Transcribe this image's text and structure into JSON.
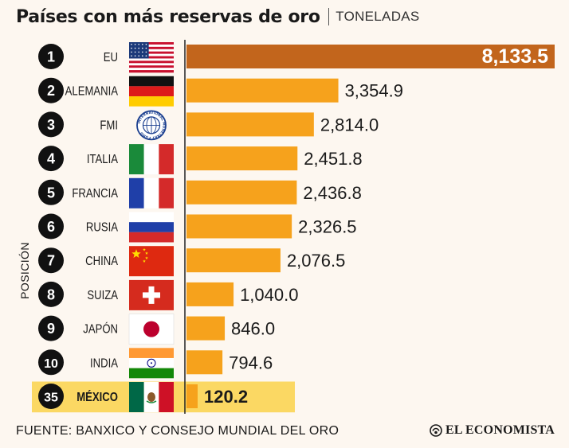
{
  "header": {
    "title": "Países con más reservas de oro",
    "unit": "TONELADAS"
  },
  "chart_data": {
    "type": "bar",
    "orientation": "horizontal",
    "title": "Países con más reservas de oro",
    "unit": "TONELADAS",
    "ylabel": "POSICIÓN",
    "xlim": [
      0,
      8133.5
    ],
    "grid": false,
    "rows": [
      {
        "rank": "1",
        "country": "EU",
        "value": 8133.5,
        "label": "8,133.5",
        "flag": "usa-flag"
      },
      {
        "rank": "2",
        "country": "ALEMANIA",
        "value": 3354.9,
        "label": "3,354.9",
        "flag": "germany-flag"
      },
      {
        "rank": "3",
        "country": "FMI",
        "value": 2814.0,
        "label": "2,814.0",
        "flag": "imf-seal"
      },
      {
        "rank": "4",
        "country": "ITALIA",
        "value": 2451.8,
        "label": "2,451.8",
        "flag": "italy-flag"
      },
      {
        "rank": "5",
        "country": "FRANCIA",
        "value": 2436.8,
        "label": "2,436.8",
        "flag": "france-flag"
      },
      {
        "rank": "6",
        "country": "RUSIA",
        "value": 2326.5,
        "label": "2,326.5",
        "flag": "russia-flag"
      },
      {
        "rank": "7",
        "country": "CHINA",
        "value": 2076.5,
        "label": "2,076.5",
        "flag": "china-flag"
      },
      {
        "rank": "8",
        "country": "SUIZA",
        "value": 1040.0,
        "label": "1,040.0",
        "flag": "switzerland-flag"
      },
      {
        "rank": "9",
        "country": "JAPÓN",
        "value": 846.0,
        "label": "846.0",
        "flag": "japan-flag"
      },
      {
        "rank": "10",
        "country": "INDIA",
        "value": 794.6,
        "label": "794.6",
        "flag": "india-flag"
      },
      {
        "rank": "35",
        "country": "MÉXICO",
        "value": 120.2,
        "label": "120.2",
        "flag": "mexico-flag",
        "highlight": true
      }
    ],
    "colors": {
      "bar": "#f6a21c",
      "top_bar": "#c2651c",
      "highlight_band": "#fbd863",
      "rank_circle": "#111111"
    }
  },
  "imf_seal_text": "INTERNATIONAL MONETARY FUND",
  "footer": {
    "source": "FUENTE: BANXICO Y CONSEJO MUNDIAL DEL ORO",
    "brand": "EL ECONOMISTA",
    "brand_icon": "el-economista-logo-icon"
  }
}
